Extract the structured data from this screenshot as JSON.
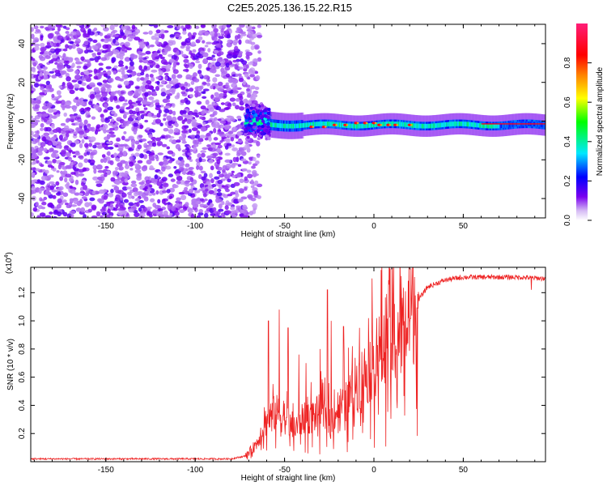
{
  "chart_data": [
    {
      "type": "heatmap",
      "title": "C2E5.2025.136.15.22.R15",
      "xlabel": "Height of straight line (km)",
      "ylabel": "Frequency (Hz)",
      "xlim": [
        -192,
        96
      ],
      "ylim": [
        -50,
        50
      ],
      "x_ticks": [
        -150,
        -100,
        -50,
        0,
        50
      ],
      "y_ticks": [
        -40,
        -20,
        0,
        20,
        40
      ],
      "colorbar": {
        "label": "Normalized spectral amplitude",
        "range": [
          0,
          1
        ],
        "ticks": [
          "0.0",
          "0.2",
          "0.4",
          "0.6",
          "0.8"
        ],
        "colormap": [
          "#d4b8f4",
          "#7a00f0",
          "#0000ff",
          "#00e8ff",
          "#00ff00",
          "#ffff00",
          "#ff8000",
          "#ff0000",
          "#ff1e78"
        ]
      },
      "regions": [
        {
          "name": "noise",
          "x_range": [
            -192,
            -72
          ],
          "freq_range": [
            -50,
            50
          ],
          "amplitude": [
            0.0,
            0.2
          ]
        },
        {
          "name": "transition",
          "x_range": [
            -72,
            -58
          ],
          "freq_range": [
            -10,
            10
          ],
          "amplitude": [
            0.1,
            0.5
          ]
        },
        {
          "name": "signal",
          "x_range": [
            -58,
            96
          ],
          "freq_center": -2,
          "freq_halfwidth": 4,
          "amplitude": [
            0.3,
            1.0
          ]
        }
      ],
      "peak_points": [
        {
          "x": -35,
          "y": -3
        },
        {
          "x": -28,
          "y": -3
        },
        {
          "x": -22,
          "y": -2
        },
        {
          "x": -16,
          "y": -2
        },
        {
          "x": -10,
          "y": -1
        },
        {
          "x": -5,
          "y": -1
        },
        {
          "x": 0,
          "y": -1
        },
        {
          "x": 3,
          "y": -2
        },
        {
          "x": 8,
          "y": -2
        },
        {
          "x": 12,
          "y": -2
        },
        {
          "x": 20,
          "y": -2
        }
      ]
    },
    {
      "type": "line",
      "xlabel": "Height of straight line (km)",
      "ylabel": "SNR (10 * v/v)",
      "y_multiplier_label": "(x10",
      "y_multiplier_exp": "4",
      "xlim": [
        -192,
        96
      ],
      "ylim": [
        0,
        1.38
      ],
      "x_ticks": [
        -150,
        -100,
        -50,
        0,
        50
      ],
      "y_ticks": [
        0.2,
        0.4,
        0.6,
        0.8,
        1.0,
        1.2
      ],
      "series_color": "#ee2222",
      "envelope": {
        "x": [
          -192,
          -80,
          -72,
          -66,
          -60,
          -55,
          -50,
          -45,
          -40,
          -35,
          -30,
          -25,
          -20,
          -15,
          -10,
          -5,
          0,
          5,
          8,
          10,
          12,
          15,
          20,
          25,
          30,
          40,
          50,
          60,
          70,
          80,
          96
        ],
        "y": [
          0.02,
          0.02,
          0.04,
          0.12,
          0.3,
          0.35,
          0.32,
          0.22,
          0.3,
          0.32,
          0.35,
          0.3,
          0.38,
          0.42,
          0.55,
          0.62,
          0.72,
          0.8,
          0.95,
          0.8,
          0.88,
          0.9,
          1.05,
          1.15,
          1.24,
          1.29,
          1.31,
          1.31,
          1.31,
          1.31,
          1.3
        ]
      },
      "spikes": [
        {
          "x": -59,
          "y": 1.0
        },
        {
          "x": -53,
          "y": 1.08
        },
        {
          "x": -48,
          "y": 0.95
        },
        {
          "x": -42,
          "y": 0.76
        },
        {
          "x": -38,
          "y": 0.7
        },
        {
          "x": -30,
          "y": 0.8
        },
        {
          "x": -26,
          "y": 1.22
        },
        {
          "x": -24,
          "y": 1.0
        },
        {
          "x": -17,
          "y": 0.96
        },
        {
          "x": -12,
          "y": 0.82
        },
        {
          "x": -8,
          "y": 0.95
        },
        {
          "x": 9,
          "y": 1.37
        },
        {
          "x": 13,
          "y": 0.38
        },
        {
          "x": 88,
          "y": 1.22
        }
      ]
    }
  ]
}
